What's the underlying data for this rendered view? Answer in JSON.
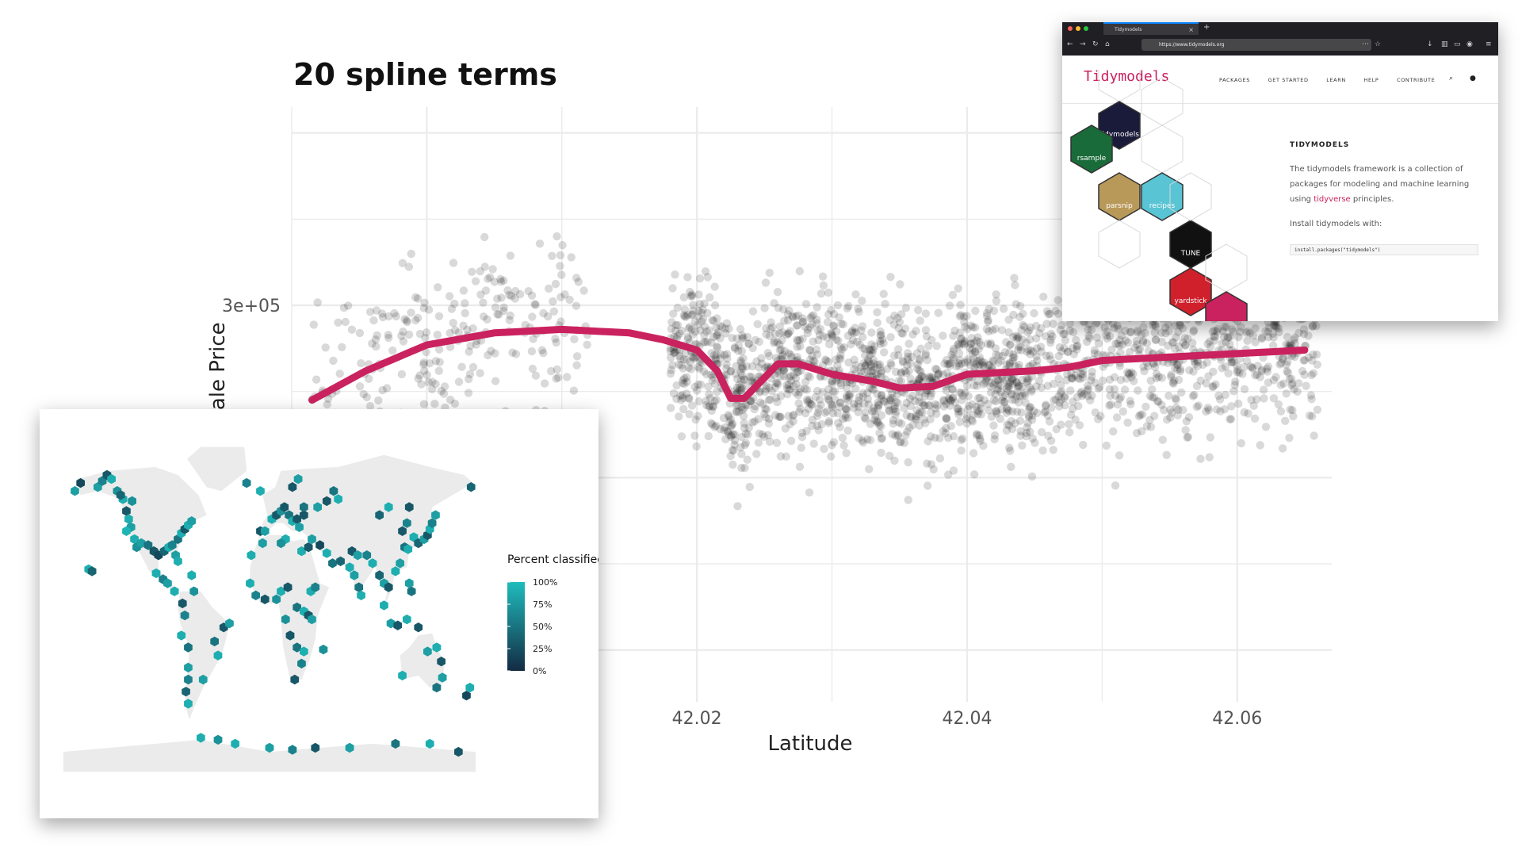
{
  "chart_data": [
    {
      "type": "scatter",
      "title": "20 spline terms",
      "xlabel": "Latitude",
      "ylabel": "Sale Price",
      "xticks": [
        42.02,
        42.04,
        42.06
      ],
      "xtick_labels": [
        "42.02",
        "42.04",
        "42.06"
      ],
      "ytick_labels": [
        "3e+05"
      ],
      "yticks": [
        300000
      ],
      "xlim": [
        41.99,
        42.067
      ],
      "ylim": [
        70000,
        415000
      ],
      "grid": true,
      "point_color": "#000000",
      "point_alpha": 0.15,
      "series": [
        {
          "type": "line",
          "color": "#ca225e",
          "x": [
            41.9915,
            41.9955,
            42.0,
            42.005,
            42.01,
            42.015,
            42.0175,
            42.02,
            42.0215,
            42.0225,
            42.0235,
            42.025,
            42.026,
            42.0275,
            42.03,
            42.033,
            42.035,
            42.0375,
            42.04,
            42.0425,
            42.045,
            42.0475,
            42.05,
            42.055,
            42.06,
            42.065
          ],
          "y": [
            245000,
            262000,
            277000,
            284000,
            286000,
            284000,
            280000,
            274000,
            262000,
            246000,
            246000,
            258000,
            266000,
            266000,
            260000,
            256000,
            252000,
            253000,
            260000,
            261000,
            262000,
            264000,
            268000,
            270000,
            272000,
            274000
          ]
        }
      ]
    },
    {
      "type": "heatmap",
      "subtype": "hexbin-map",
      "legend_title": "Percent classified correctly",
      "legend_ticks": [
        "100%",
        "75%",
        "50%",
        "25%",
        "0%"
      ],
      "legend_values": [
        1.0,
        0.75,
        0.5,
        0.25,
        0.0
      ],
      "color_low": "#132b43",
      "color_high": "#1fbcbc",
      "land_color": "#ebebeb",
      "hexes": [
        [
          -150,
          62,
          0.8
        ],
        [
          -146,
          65,
          0.6
        ],
        [
          -142,
          68,
          0.3
        ],
        [
          -138,
          66,
          0.9
        ],
        [
          -133,
          60,
          0.7
        ],
        [
          -128,
          56,
          0.9
        ],
        [
          -125,
          50,
          0.3
        ],
        [
          -123,
          46,
          0.9
        ],
        [
          -121,
          42,
          0.8
        ],
        [
          -118,
          36,
          0.9
        ],
        [
          -116,
          32,
          0.7
        ],
        [
          -112,
          34,
          0.8
        ],
        [
          -106,
          33,
          0.5
        ],
        [
          -101,
          30,
          0.3
        ],
        [
          -97,
          28,
          0.2
        ],
        [
          -92,
          30,
          0.4
        ],
        [
          -88,
          32,
          0.9
        ],
        [
          -85,
          33,
          0.6
        ],
        [
          -82,
          28,
          0.8
        ],
        [
          -80,
          25,
          0.9
        ],
        [
          -80,
          36,
          0.5
        ],
        [
          -77,
          39,
          0.9
        ],
        [
          -74,
          41,
          0.3
        ],
        [
          -71,
          43,
          0.9
        ],
        [
          -68,
          45,
          0.8
        ],
        [
          -125,
          40,
          0.95
        ],
        [
          -120,
          55,
          0.7
        ],
        [
          -130,
          58,
          0.4
        ],
        [
          -99,
          19,
          0.9
        ],
        [
          -93,
          16,
          0.6
        ],
        [
          -89,
          14,
          0.8
        ],
        [
          -83,
          10,
          0.9
        ],
        [
          -76,
          4,
          0.3
        ],
        [
          -74,
          -2,
          0.6
        ],
        [
          -77,
          -12,
          0.9
        ],
        [
          -71,
          -18,
          0.5
        ],
        [
          -71,
          -28,
          0.8
        ],
        [
          -71,
          -34,
          0.6
        ],
        [
          -73,
          -40,
          0.4
        ],
        [
          -71,
          -46,
          0.9
        ],
        [
          -58,
          -34,
          0.8
        ],
        [
          -48,
          -15,
          0.5
        ],
        [
          -45,
          -22,
          0.9
        ],
        [
          -40,
          -8,
          0.3
        ],
        [
          -35,
          -6,
          0.8
        ],
        [
          -68,
          18,
          0.9
        ],
        [
          -66,
          10,
          0.7
        ],
        [
          -158,
          21,
          0.9
        ],
        [
          -155,
          20,
          0.4
        ],
        [
          -170,
          60,
          0.8
        ],
        [
          -165,
          64,
          0.2
        ],
        [
          -8,
          40,
          0.3
        ],
        [
          -4,
          40,
          0.8
        ],
        [
          2,
          46,
          0.9
        ],
        [
          6,
          48,
          0.3
        ],
        [
          10,
          50,
          0.7
        ],
        [
          13,
          52,
          0.3
        ],
        [
          17,
          48,
          0.5
        ],
        [
          20,
          45,
          0.9
        ],
        [
          24,
          46,
          0.3
        ],
        [
          26,
          42,
          0.8
        ],
        [
          30,
          48,
          0.3
        ],
        [
          30,
          52,
          0.5
        ],
        [
          14,
          36,
          0.9
        ],
        [
          -8,
          60,
          0.9
        ],
        [
          -20,
          64,
          0.6
        ],
        [
          20,
          62,
          0.3
        ],
        [
          25,
          66,
          0.8
        ],
        [
          -16,
          28,
          0.9
        ],
        [
          -6,
          34,
          0.8
        ],
        [
          10,
          34,
          0.7
        ],
        [
          28,
          30,
          0.9
        ],
        [
          34,
          32,
          0.3
        ],
        [
          37,
          36,
          0.8
        ],
        [
          44,
          33,
          0.2
        ],
        [
          50,
          29,
          0.9
        ],
        [
          55,
          24,
          0.5
        ],
        [
          -17,
          14,
          0.9
        ],
        [
          -12,
          8,
          0.6
        ],
        [
          -4,
          6,
          0.3
        ],
        [
          6,
          6,
          0.7
        ],
        [
          10,
          10,
          0.9
        ],
        [
          16,
          12,
          0.3
        ],
        [
          24,
          2,
          0.5
        ],
        [
          30,
          0,
          0.9
        ],
        [
          34,
          -2,
          0.3
        ],
        [
          37,
          -4,
          0.8
        ],
        [
          36,
          10,
          0.9
        ],
        [
          40,
          12,
          0.6
        ],
        [
          14,
          -4,
          0.7
        ],
        [
          18,
          -12,
          0.3
        ],
        [
          24,
          -18,
          0.5
        ],
        [
          30,
          -20,
          0.9
        ],
        [
          28,
          -26,
          0.6
        ],
        [
          22,
          -34,
          0.3
        ],
        [
          47,
          -19,
          0.7
        ],
        [
          62,
          25,
          0.4
        ],
        [
          70,
          22,
          0.9
        ],
        [
          74,
          18,
          0.8
        ],
        [
          78,
          12,
          0.5
        ],
        [
          80,
          8,
          0.9
        ],
        [
          72,
          30,
          0.3
        ],
        [
          77,
          28,
          0.8
        ],
        [
          85,
          28,
          0.6
        ],
        [
          90,
          24,
          0.9
        ],
        [
          96,
          18,
          0.4
        ],
        [
          100,
          14,
          0.8
        ],
        [
          104,
          12,
          0.3
        ],
        [
          110,
          20,
          0.9
        ],
        [
          114,
          24,
          0.8
        ],
        [
          118,
          32,
          0.5
        ],
        [
          121,
          31,
          0.9
        ],
        [
          116,
          40,
          0.3
        ],
        [
          120,
          44,
          0.6
        ],
        [
          126,
          37,
          0.9
        ],
        [
          130,
          34,
          0.4
        ],
        [
          135,
          36,
          0.8
        ],
        [
          138,
          38,
          0.3
        ],
        [
          140,
          41,
          0.9
        ],
        [
          142,
          44,
          0.6
        ],
        [
          145,
          48,
          0.8
        ],
        [
          96,
          48,
          0.4
        ],
        [
          104,
          52,
          0.9
        ],
        [
          122,
          52,
          0.3
        ],
        [
          100,
          3,
          0.9
        ],
        [
          106,
          -6,
          0.8
        ],
        [
          112,
          -7,
          0.3
        ],
        [
          120,
          -4,
          0.9
        ],
        [
          124,
          10,
          0.5
        ],
        [
          122,
          14,
          0.8
        ],
        [
          130,
          -8,
          0.3
        ],
        [
          138,
          -20,
          0.8
        ],
        [
          146,
          -18,
          0.9
        ],
        [
          150,
          -25,
          0.3
        ],
        [
          151,
          -33,
          0.8
        ],
        [
          146,
          -38,
          0.5
        ],
        [
          116,
          -32,
          0.9
        ],
        [
          172,
          -42,
          0.2
        ],
        [
          175,
          -38,
          0.9
        ],
        [
          176,
          62,
          0.4
        ],
        [
          60,
          56,
          0.9
        ],
        [
          50,
          55,
          0.3
        ],
        [
          42,
          52,
          0.8
        ],
        [
          56,
          60,
          0.5
        ],
        [
          -60,
          -63,
          0.9
        ],
        [
          -45,
          -64,
          0.7
        ],
        [
          -30,
          -66,
          0.9
        ],
        [
          0,
          -68,
          0.8
        ],
        [
          20,
          -69,
          0.6
        ],
        [
          40,
          -68,
          0.3
        ],
        [
          70,
          -68,
          0.8
        ],
        [
          110,
          -66,
          0.5
        ],
        [
          140,
          -66,
          0.9
        ],
        [
          165,
          -70,
          0.3
        ]
      ]
    }
  ],
  "browser": {
    "tab_title": "Tidymodels",
    "url": "https://www.tidymodels.org",
    "brand": "Tidymodels",
    "nav": [
      "PACKAGES",
      "GET STARTED",
      "LEARN",
      "HELP",
      "CONTRIBUTE"
    ],
    "section_title": "TIDYMODELS",
    "blurb_before": "The tidymodels framework is a collection of packages for modeling and machine learning using ",
    "blurb_link": "tidyverse",
    "blurb_after": " principles.",
    "install_text": "Install tidymodels with:",
    "install_code": "install.packages(\"tidymodels\")",
    "hexes": [
      {
        "name": "tidymodels",
        "color": "#1a1a3a"
      },
      {
        "name": "rsample",
        "color": "#1a6b3a"
      },
      {
        "name": "recipes",
        "color": "#58c4d4"
      },
      {
        "name": "parsnip",
        "color": "#b8995a"
      },
      {
        "name": "TUNE",
        "color": "#111111"
      },
      {
        "name": "yardstick",
        "color": "#d0202c"
      },
      {
        "name": "",
        "color": "#ca225e"
      }
    ]
  }
}
